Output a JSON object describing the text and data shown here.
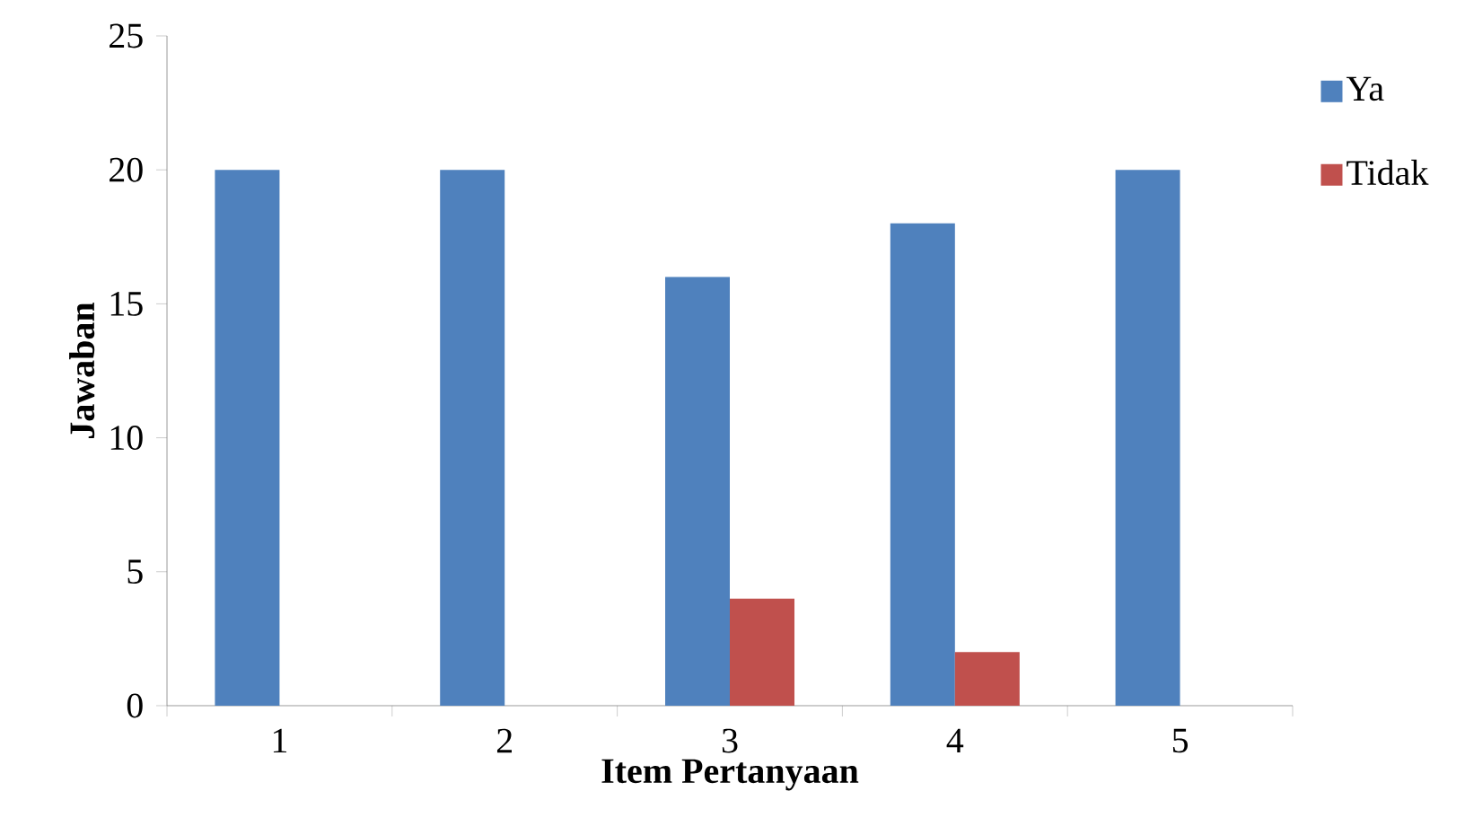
{
  "chart_data": {
    "type": "bar",
    "xlabel": "Item Pertanyaan",
    "ylabel": "Jawaban",
    "categories": [
      "1",
      "2",
      "3",
      "4",
      "5"
    ],
    "series": [
      {
        "name": "Ya",
        "color": "#4f81bd",
        "values": [
          20,
          20,
          16,
          18,
          20
        ]
      },
      {
        "name": "Tidak",
        "color": "#c0504d",
        "values": [
          0,
          0,
          4,
          2,
          0
        ]
      }
    ],
    "ylim": [
      0,
      25
    ],
    "yticks": [
      0,
      5,
      10,
      15,
      20,
      25
    ],
    "grid": false,
    "legend": "right"
  }
}
